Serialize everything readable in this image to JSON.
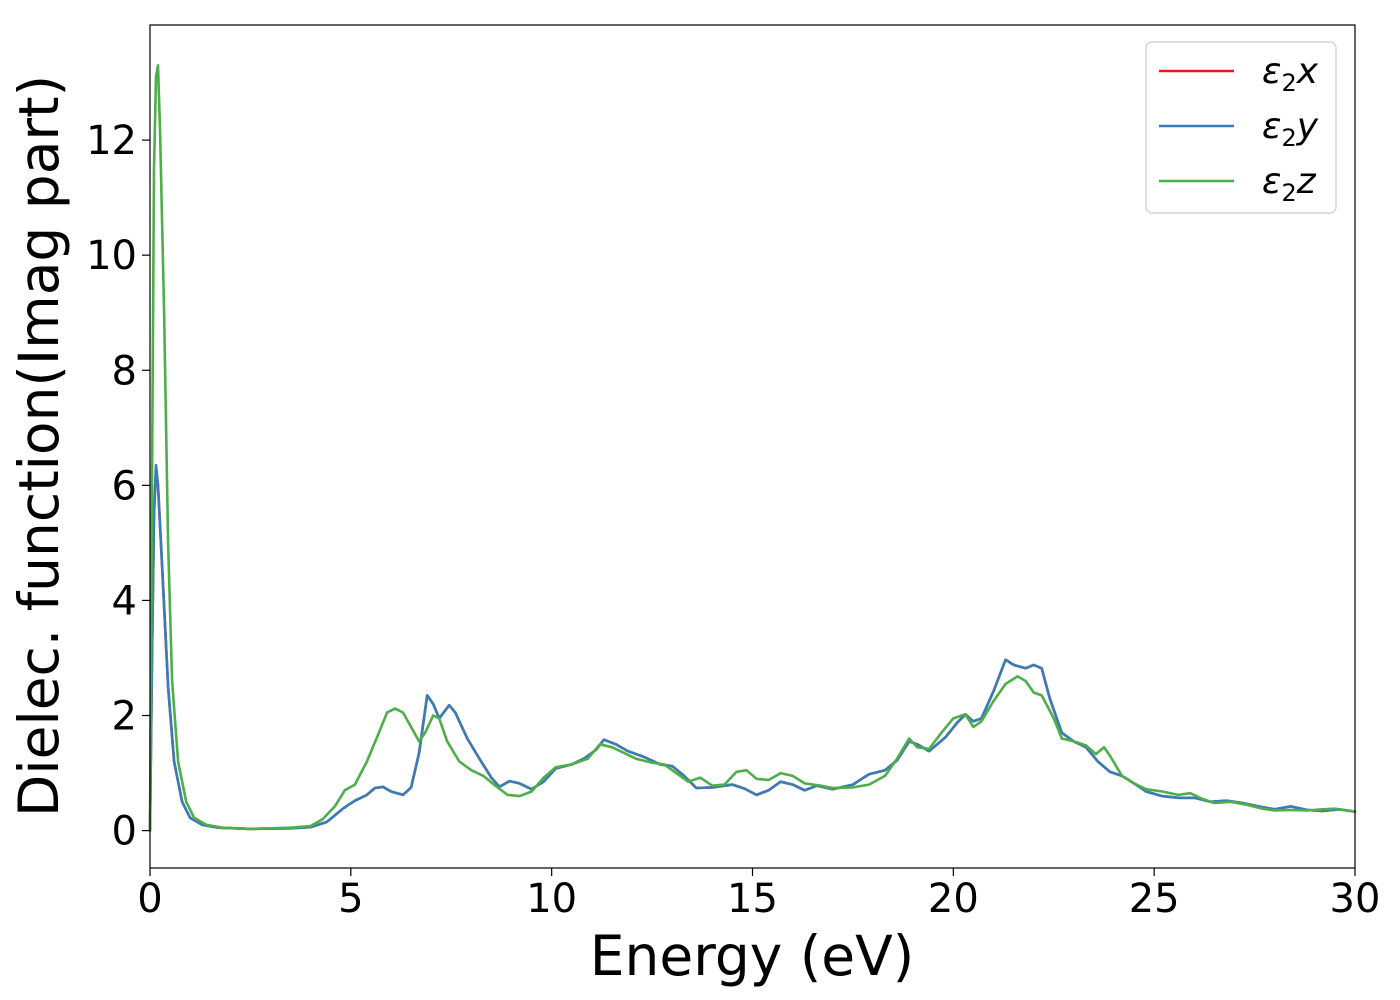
{
  "chart_data": {
    "type": "line",
    "xlabel": "Energy (eV)",
    "ylabel": "Dielec. function(Imag part)",
    "xlim": [
      0,
      30
    ],
    "ylim": [
      -0.65,
      14
    ],
    "xticks": [
      0,
      5,
      10,
      15,
      20,
      25,
      30
    ],
    "yticks": [
      0,
      2,
      4,
      6,
      8,
      10,
      12
    ],
    "grid": false,
    "legend_position": "top-right",
    "series": [
      {
        "name": "ε₂x",
        "legend_main": "ε",
        "legend_sub": "2",
        "legend_tail": "x",
        "color": "#e41a1c",
        "points": [
          [
            0,
            0
          ],
          [
            0.05,
            3.0
          ],
          [
            0.1,
            5.5
          ],
          [
            0.15,
            6.3
          ],
          [
            0.2,
            6.0
          ],
          [
            0.3,
            4.6
          ],
          [
            0.45,
            2.5
          ],
          [
            0.6,
            1.2
          ],
          [
            0.8,
            0.5
          ],
          [
            1.0,
            0.22
          ],
          [
            1.3,
            0.1
          ],
          [
            1.7,
            0.05
          ],
          [
            2.5,
            0.03
          ],
          [
            3.5,
            0.04
          ],
          [
            4.0,
            0.06
          ],
          [
            4.4,
            0.15
          ],
          [
            4.8,
            0.38
          ],
          [
            5.1,
            0.52
          ],
          [
            5.4,
            0.62
          ],
          [
            5.6,
            0.74
          ],
          [
            5.8,
            0.76
          ],
          [
            6.0,
            0.68
          ],
          [
            6.3,
            0.62
          ],
          [
            6.5,
            0.75
          ],
          [
            6.7,
            1.35
          ],
          [
            6.9,
            2.35
          ],
          [
            7.05,
            2.2
          ],
          [
            7.2,
            1.95
          ],
          [
            7.45,
            2.18
          ],
          [
            7.6,
            2.05
          ],
          [
            7.9,
            1.6
          ],
          [
            8.2,
            1.25
          ],
          [
            8.5,
            0.92
          ],
          [
            8.7,
            0.76
          ],
          [
            8.95,
            0.86
          ],
          [
            9.2,
            0.82
          ],
          [
            9.5,
            0.72
          ],
          [
            9.8,
            0.85
          ],
          [
            10.1,
            1.08
          ],
          [
            10.5,
            1.15
          ],
          [
            10.8,
            1.25
          ],
          [
            11.1,
            1.4
          ],
          [
            11.3,
            1.58
          ],
          [
            11.6,
            1.5
          ],
          [
            11.9,
            1.38
          ],
          [
            12.3,
            1.28
          ],
          [
            12.7,
            1.15
          ],
          [
            13.0,
            1.12
          ],
          [
            13.3,
            0.95
          ],
          [
            13.6,
            0.74
          ],
          [
            14.0,
            0.75
          ],
          [
            14.5,
            0.8
          ],
          [
            14.8,
            0.73
          ],
          [
            15.1,
            0.62
          ],
          [
            15.4,
            0.7
          ],
          [
            15.7,
            0.85
          ],
          [
            16.0,
            0.8
          ],
          [
            16.3,
            0.7
          ],
          [
            16.6,
            0.78
          ],
          [
            17.0,
            0.72
          ],
          [
            17.5,
            0.8
          ],
          [
            17.9,
            0.98
          ],
          [
            18.3,
            1.05
          ],
          [
            18.6,
            1.22
          ],
          [
            18.9,
            1.55
          ],
          [
            19.1,
            1.5
          ],
          [
            19.4,
            1.38
          ],
          [
            19.8,
            1.62
          ],
          [
            20.1,
            1.88
          ],
          [
            20.3,
            2.02
          ],
          [
            20.5,
            1.9
          ],
          [
            20.7,
            1.95
          ],
          [
            21.0,
            2.42
          ],
          [
            21.3,
            2.97
          ],
          [
            21.5,
            2.88
          ],
          [
            21.8,
            2.82
          ],
          [
            22.0,
            2.88
          ],
          [
            22.2,
            2.82
          ],
          [
            22.4,
            2.3
          ],
          [
            22.7,
            1.7
          ],
          [
            23.0,
            1.55
          ],
          [
            23.3,
            1.45
          ],
          [
            23.6,
            1.2
          ],
          [
            23.9,
            1.02
          ],
          [
            24.2,
            0.95
          ],
          [
            24.5,
            0.82
          ],
          [
            24.8,
            0.68
          ],
          [
            25.2,
            0.6
          ],
          [
            25.6,
            0.57
          ],
          [
            26.0,
            0.57
          ],
          [
            26.4,
            0.5
          ],
          [
            26.8,
            0.52
          ],
          [
            27.2,
            0.48
          ],
          [
            27.6,
            0.42
          ],
          [
            28.0,
            0.37
          ],
          [
            28.4,
            0.42
          ],
          [
            28.8,
            0.36
          ],
          [
            29.2,
            0.34
          ],
          [
            29.6,
            0.37
          ],
          [
            30.0,
            0.33
          ]
        ]
      },
      {
        "name": "ε₂y",
        "legend_main": "ε",
        "legend_sub": "2",
        "legend_tail": "y",
        "color": "#377eb8",
        "points": [
          [
            0,
            0
          ],
          [
            0.05,
            3.0
          ],
          [
            0.1,
            5.5
          ],
          [
            0.15,
            6.35
          ],
          [
            0.2,
            6.0
          ],
          [
            0.3,
            4.6
          ],
          [
            0.45,
            2.5
          ],
          [
            0.6,
            1.2
          ],
          [
            0.8,
            0.5
          ],
          [
            1.0,
            0.22
          ],
          [
            1.3,
            0.1
          ],
          [
            1.7,
            0.05
          ],
          [
            2.5,
            0.03
          ],
          [
            3.5,
            0.04
          ],
          [
            4.0,
            0.06
          ],
          [
            4.4,
            0.15
          ],
          [
            4.8,
            0.38
          ],
          [
            5.1,
            0.52
          ],
          [
            5.4,
            0.62
          ],
          [
            5.6,
            0.74
          ],
          [
            5.8,
            0.76
          ],
          [
            6.0,
            0.68
          ],
          [
            6.3,
            0.62
          ],
          [
            6.5,
            0.75
          ],
          [
            6.7,
            1.35
          ],
          [
            6.9,
            2.35
          ],
          [
            7.05,
            2.2
          ],
          [
            7.2,
            1.95
          ],
          [
            7.45,
            2.18
          ],
          [
            7.6,
            2.05
          ],
          [
            7.9,
            1.6
          ],
          [
            8.2,
            1.25
          ],
          [
            8.5,
            0.92
          ],
          [
            8.7,
            0.76
          ],
          [
            8.95,
            0.86
          ],
          [
            9.2,
            0.82
          ],
          [
            9.5,
            0.72
          ],
          [
            9.8,
            0.85
          ],
          [
            10.1,
            1.08
          ],
          [
            10.5,
            1.15
          ],
          [
            10.8,
            1.25
          ],
          [
            11.1,
            1.4
          ],
          [
            11.3,
            1.58
          ],
          [
            11.6,
            1.5
          ],
          [
            11.9,
            1.38
          ],
          [
            12.3,
            1.28
          ],
          [
            12.7,
            1.15
          ],
          [
            13.0,
            1.12
          ],
          [
            13.3,
            0.95
          ],
          [
            13.6,
            0.74
          ],
          [
            14.0,
            0.75
          ],
          [
            14.5,
            0.8
          ],
          [
            14.8,
            0.73
          ],
          [
            15.1,
            0.62
          ],
          [
            15.4,
            0.7
          ],
          [
            15.7,
            0.85
          ],
          [
            16.0,
            0.8
          ],
          [
            16.3,
            0.7
          ],
          [
            16.6,
            0.78
          ],
          [
            17.0,
            0.72
          ],
          [
            17.5,
            0.8
          ],
          [
            17.9,
            0.98
          ],
          [
            18.3,
            1.05
          ],
          [
            18.6,
            1.22
          ],
          [
            18.9,
            1.55
          ],
          [
            19.1,
            1.5
          ],
          [
            19.4,
            1.38
          ],
          [
            19.8,
            1.62
          ],
          [
            20.1,
            1.88
          ],
          [
            20.3,
            2.02
          ],
          [
            20.5,
            1.9
          ],
          [
            20.7,
            1.95
          ],
          [
            21.0,
            2.42
          ],
          [
            21.3,
            2.97
          ],
          [
            21.5,
            2.88
          ],
          [
            21.8,
            2.82
          ],
          [
            22.0,
            2.88
          ],
          [
            22.2,
            2.82
          ],
          [
            22.4,
            2.3
          ],
          [
            22.7,
            1.7
          ],
          [
            23.0,
            1.55
          ],
          [
            23.3,
            1.45
          ],
          [
            23.6,
            1.2
          ],
          [
            23.9,
            1.02
          ],
          [
            24.2,
            0.95
          ],
          [
            24.5,
            0.82
          ],
          [
            24.8,
            0.68
          ],
          [
            25.2,
            0.6
          ],
          [
            25.6,
            0.57
          ],
          [
            26.0,
            0.57
          ],
          [
            26.4,
            0.5
          ],
          [
            26.8,
            0.52
          ],
          [
            27.2,
            0.48
          ],
          [
            27.6,
            0.42
          ],
          [
            28.0,
            0.37
          ],
          [
            28.4,
            0.42
          ],
          [
            28.8,
            0.36
          ],
          [
            29.2,
            0.34
          ],
          [
            29.6,
            0.37
          ],
          [
            30.0,
            0.33
          ]
        ]
      },
      {
        "name": "ε₂z",
        "legend_main": "ε",
        "legend_sub": "2",
        "legend_tail": "z",
        "color": "#4daf4a",
        "points": [
          [
            0,
            0
          ],
          [
            0.05,
            6.0
          ],
          [
            0.1,
            11.5
          ],
          [
            0.15,
            13.1
          ],
          [
            0.2,
            13.3
          ],
          [
            0.25,
            12.2
          ],
          [
            0.35,
            9.0
          ],
          [
            0.45,
            5.0
          ],
          [
            0.55,
            2.6
          ],
          [
            0.7,
            1.2
          ],
          [
            0.9,
            0.5
          ],
          [
            1.1,
            0.22
          ],
          [
            1.4,
            0.1
          ],
          [
            1.8,
            0.05
          ],
          [
            2.5,
            0.03
          ],
          [
            3.5,
            0.05
          ],
          [
            4.0,
            0.08
          ],
          [
            4.3,
            0.2
          ],
          [
            4.6,
            0.42
          ],
          [
            4.85,
            0.7
          ],
          [
            5.1,
            0.8
          ],
          [
            5.4,
            1.2
          ],
          [
            5.7,
            1.7
          ],
          [
            5.9,
            2.05
          ],
          [
            6.1,
            2.12
          ],
          [
            6.3,
            2.05
          ],
          [
            6.5,
            1.8
          ],
          [
            6.7,
            1.55
          ],
          [
            6.85,
            1.7
          ],
          [
            7.05,
            2.0
          ],
          [
            7.2,
            1.95
          ],
          [
            7.4,
            1.55
          ],
          [
            7.7,
            1.2
          ],
          [
            8.0,
            1.05
          ],
          [
            8.3,
            0.95
          ],
          [
            8.6,
            0.78
          ],
          [
            8.9,
            0.62
          ],
          [
            9.2,
            0.6
          ],
          [
            9.5,
            0.68
          ],
          [
            9.8,
            0.92
          ],
          [
            10.1,
            1.1
          ],
          [
            10.5,
            1.15
          ],
          [
            10.9,
            1.25
          ],
          [
            11.2,
            1.5
          ],
          [
            11.5,
            1.45
          ],
          [
            11.8,
            1.35
          ],
          [
            12.1,
            1.25
          ],
          [
            12.5,
            1.18
          ],
          [
            12.8,
            1.15
          ],
          [
            13.1,
            1.0
          ],
          [
            13.4,
            0.85
          ],
          [
            13.7,
            0.92
          ],
          [
            14.0,
            0.78
          ],
          [
            14.3,
            0.8
          ],
          [
            14.6,
            1.02
          ],
          [
            14.85,
            1.05
          ],
          [
            15.1,
            0.9
          ],
          [
            15.4,
            0.88
          ],
          [
            15.7,
            1.0
          ],
          [
            16.0,
            0.95
          ],
          [
            16.3,
            0.82
          ],
          [
            16.7,
            0.78
          ],
          [
            17.0,
            0.74
          ],
          [
            17.5,
            0.75
          ],
          [
            17.9,
            0.8
          ],
          [
            18.3,
            0.95
          ],
          [
            18.6,
            1.25
          ],
          [
            18.9,
            1.6
          ],
          [
            19.1,
            1.45
          ],
          [
            19.4,
            1.42
          ],
          [
            19.7,
            1.7
          ],
          [
            20.0,
            1.95
          ],
          [
            20.3,
            2.02
          ],
          [
            20.5,
            1.8
          ],
          [
            20.7,
            1.9
          ],
          [
            21.0,
            2.25
          ],
          [
            21.3,
            2.55
          ],
          [
            21.6,
            2.68
          ],
          [
            21.8,
            2.6
          ],
          [
            22.0,
            2.4
          ],
          [
            22.2,
            2.35
          ],
          [
            22.5,
            1.95
          ],
          [
            22.7,
            1.6
          ],
          [
            23.0,
            1.55
          ],
          [
            23.3,
            1.48
          ],
          [
            23.55,
            1.33
          ],
          [
            23.75,
            1.45
          ],
          [
            23.9,
            1.3
          ],
          [
            24.2,
            0.95
          ],
          [
            24.5,
            0.82
          ],
          [
            24.8,
            0.72
          ],
          [
            25.2,
            0.68
          ],
          [
            25.6,
            0.62
          ],
          [
            25.9,
            0.65
          ],
          [
            26.2,
            0.55
          ],
          [
            26.5,
            0.48
          ],
          [
            26.9,
            0.5
          ],
          [
            27.3,
            0.45
          ],
          [
            27.7,
            0.38
          ],
          [
            28.0,
            0.35
          ],
          [
            28.4,
            0.36
          ],
          [
            28.8,
            0.35
          ],
          [
            29.2,
            0.37
          ],
          [
            29.5,
            0.38
          ],
          [
            30.0,
            0.33
          ]
        ]
      }
    ]
  }
}
